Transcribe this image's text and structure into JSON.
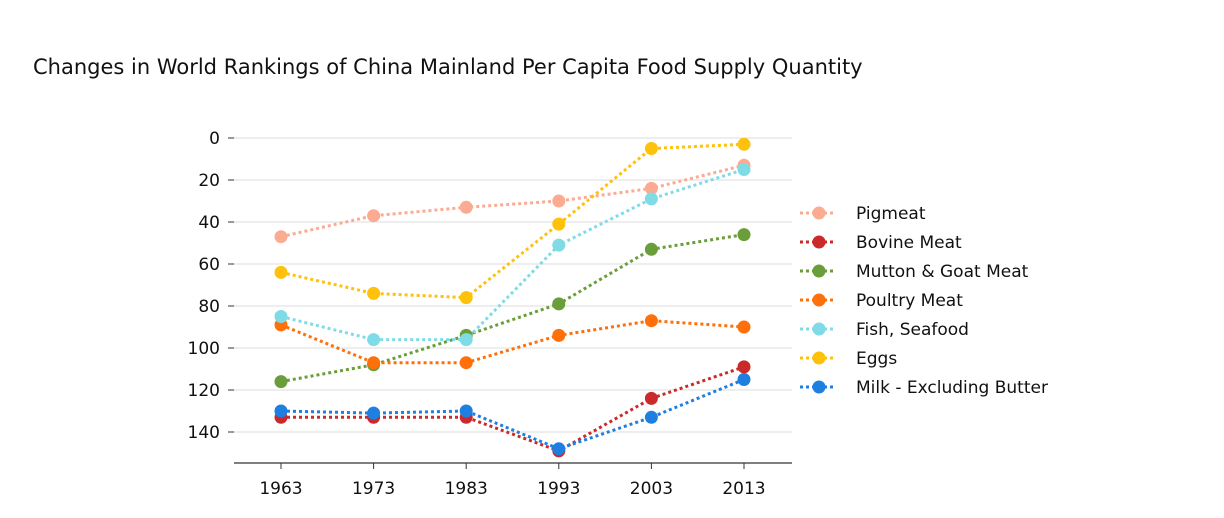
{
  "chart_data": {
    "type": "line",
    "title": "Changes in World Rankings of China Mainland Per Capita Food Supply Quantity",
    "xlabel": "",
    "ylabel": "",
    "x": [
      "1963",
      "1973",
      "1983",
      "1993",
      "2003",
      "2013"
    ],
    "yticks": [
      "0",
      "20",
      "40",
      "60",
      "80",
      "100",
      "120",
      "140"
    ],
    "ylim": [
      155,
      0
    ],
    "y_inverted": true,
    "grid": "horizontal",
    "legend_position": "right",
    "series": [
      {
        "name": "Pigmeat",
        "color": "#fcab93",
        "values": [
          47,
          37,
          33,
          30,
          24,
          13
        ]
      },
      {
        "name": "Bovine Meat",
        "color": "#cb2a2a",
        "values": [
          133,
          133,
          133,
          149,
          124,
          109
        ]
      },
      {
        "name": "Mutton & Goat Meat",
        "color": "#6a9e3a",
        "values": [
          116,
          108,
          94,
          79,
          53,
          46
        ]
      },
      {
        "name": "Poultry Meat",
        "color": "#ff6f0a",
        "values": [
          89,
          107,
          107,
          94,
          87,
          90
        ]
      },
      {
        "name": "Fish, Seafood",
        "color": "#7fdbe6",
        "values": [
          85,
          96,
          96,
          51,
          29,
          15
        ]
      },
      {
        "name": "Eggs",
        "color": "#fec10c",
        "values": [
          64,
          74,
          76,
          41,
          5,
          3
        ]
      },
      {
        "name": "Milk - Excluding Butter",
        "color": "#1e7fe0",
        "values": [
          130,
          131,
          130,
          148,
          133,
          115
        ]
      }
    ]
  }
}
